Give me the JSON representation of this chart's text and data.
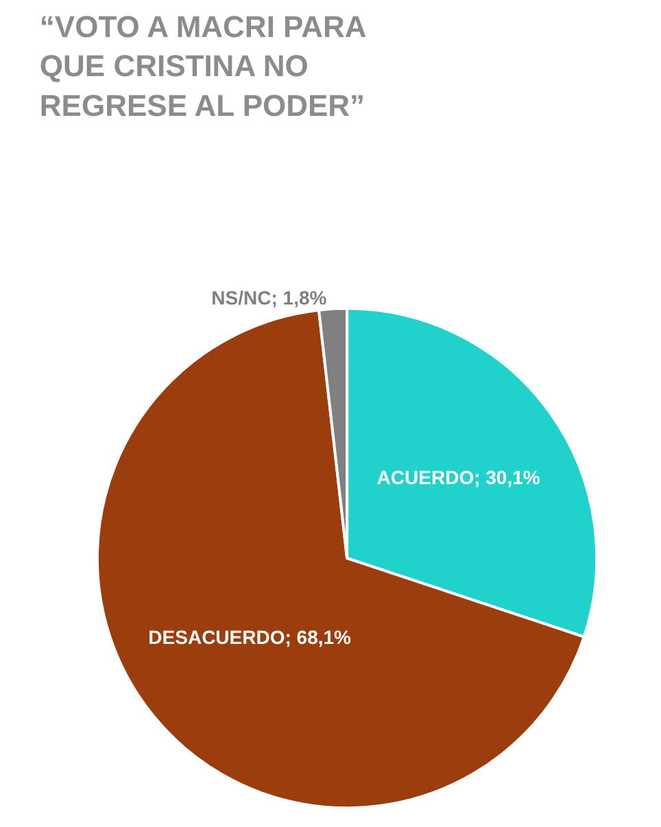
{
  "chart_data": {
    "type": "pie",
    "title": "“VOTO A MACRI PARA\nQUE CRISTINA NO\nREGRESE AL PODER”",
    "categories": [
      "ACUERDO",
      "DESACUERDO",
      "NS/NC"
    ],
    "values": [
      30.1,
      68.1,
      1.8
    ],
    "colors": [
      "#1fd3cc",
      "#9b3d0c",
      "#808080"
    ],
    "value_labels": [
      "30,1%",
      "68,1%",
      "1,8%"
    ],
    "legend": false
  }
}
